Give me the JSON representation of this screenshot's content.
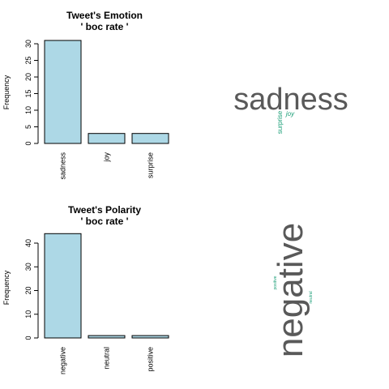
{
  "chart_data": [
    {
      "type": "bar",
      "title": "Tweet's Emotion",
      "subtitle": "' boc rate '",
      "xlabel": "",
      "ylabel": "Frequency",
      "categories": [
        "sadness",
        "joy",
        "surprise"
      ],
      "values": [
        31,
        3,
        3
      ],
      "ylim": [
        0,
        30
      ],
      "yticks": [
        0,
        5,
        10,
        15,
        20,
        25,
        30
      ],
      "bar_color": "#add8e6",
      "grid": false
    },
    {
      "type": "bar",
      "title": "Tweet's Polarity",
      "subtitle": "' boc rate '",
      "xlabel": "",
      "ylabel": "Frequency",
      "categories": [
        "negative",
        "neutral",
        "positive"
      ],
      "values": [
        44,
        1,
        1
      ],
      "ylim": [
        0,
        40
      ],
      "yticks": [
        0,
        10,
        20,
        30,
        40
      ],
      "bar_color": "#add8e6",
      "grid": false
    }
  ],
  "wordclouds": [
    {
      "words": [
        {
          "text": "sadness",
          "color": "#595959"
        },
        {
          "text": "joy",
          "color": "#1b9e77"
        },
        {
          "text": "surprise",
          "color": "#1b9e77"
        }
      ]
    },
    {
      "words": [
        {
          "text": "negative",
          "color": "#595959"
        },
        {
          "text": "positive",
          "color": "#1b9e77"
        },
        {
          "text": "neutral",
          "color": "#1b9e77"
        }
      ]
    }
  ]
}
